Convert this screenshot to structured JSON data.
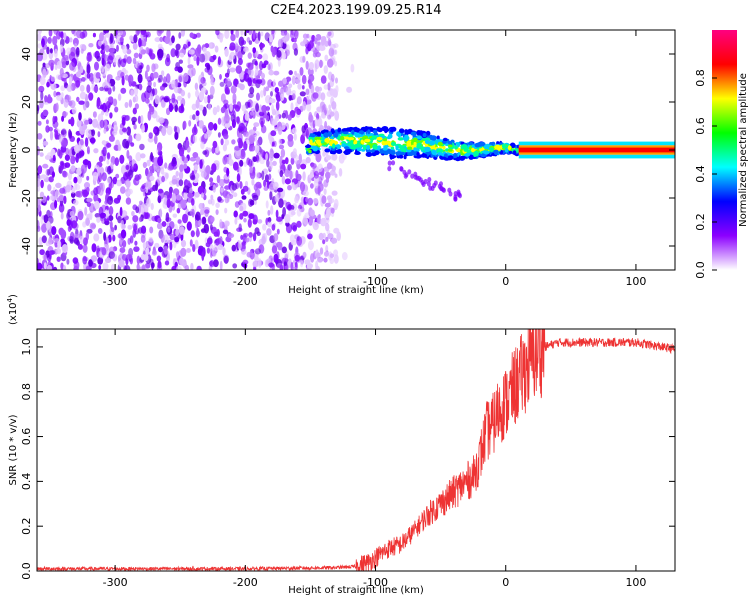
{
  "title": "C2E4.2023.199.09.25.R14",
  "chart_data": [
    {
      "type": "heatmap",
      "name": "spectrogram",
      "xlabel": "Height of straight line (km)",
      "ylabel": "Frequency (Hz)",
      "xlim": [
        -360,
        130
      ],
      "ylim": [
        -50,
        50
      ],
      "xticks": [
        -300,
        -200,
        -100,
        0,
        100
      ],
      "yticks": [
        -40,
        -20,
        0,
        20,
        40
      ],
      "noise_region": {
        "x_range": [
          -360,
          -130
        ],
        "y_range": [
          -50,
          50
        ]
      },
      "signal_band": [
        {
          "x": -150,
          "center": 3,
          "half_width": 4
        },
        {
          "x": -120,
          "center": 4,
          "half_width": 5
        },
        {
          "x": -90,
          "center": 3,
          "half_width": 6
        },
        {
          "x": -60,
          "center": 2,
          "half_width": 5
        },
        {
          "x": -40,
          "center": 0,
          "half_width": 4
        },
        {
          "x": -20,
          "center": 0,
          "half_width": 3
        },
        {
          "x": 0,
          "center": 1,
          "half_width": 2
        },
        {
          "x": 10,
          "center": 0,
          "half_width": 1.5
        },
        {
          "x": 130,
          "center": 0,
          "half_width": 1.5
        }
      ],
      "colorbar": {
        "label": "Normalized spectral amplitude",
        "range": [
          0,
          1
        ],
        "ticks": [
          0.0,
          0.2,
          0.4,
          0.6,
          0.8
        ],
        "tick_labels": [
          "0.0",
          "0.2",
          "0.4",
          "0.6",
          "0.8"
        ],
        "colors": [
          "#ffffff",
          "#8c00ff",
          "#0000ff",
          "#00ffff",
          "#00ff00",
          "#ffff00",
          "#ff0000",
          "#ff0080"
        ]
      }
    },
    {
      "type": "line",
      "name": "snr",
      "xlabel": "Height of straight line (km)",
      "ylabel": "SNR (10 * v/v)",
      "y_multiplier": "(x10",
      "y_multiplier_exp": "4",
      "y_multiplier_close": ")",
      "xlim": [
        -360,
        130
      ],
      "ylim": [
        0.0,
        1.08
      ],
      "xticks": [
        -300,
        -200,
        -100,
        0,
        100
      ],
      "yticks": [
        0.0,
        0.2,
        0.4,
        0.6,
        0.8,
        1.0
      ],
      "ytick_labels": [
        "0.0",
        "0.2",
        "0.4",
        "0.6",
        "0.8",
        "1.0"
      ],
      "series": [
        {
          "name": "SNR",
          "color": "#ee3333",
          "x": [
            -360,
            -300,
            -200,
            -130,
            -115,
            -105,
            -100,
            -90,
            -80,
            -70,
            -60,
            -50,
            -40,
            -30,
            -25,
            -20,
            -15,
            -10,
            -5,
            0,
            5,
            10,
            15,
            20,
            25,
            30,
            40,
            60,
            80,
            95,
            100,
            110,
            120,
            130
          ],
          "y": [
            0.01,
            0.01,
            0.01,
            0.015,
            0.02,
            0.04,
            0.06,
            0.1,
            0.12,
            0.18,
            0.25,
            0.3,
            0.35,
            0.4,
            0.42,
            0.5,
            0.62,
            0.65,
            0.72,
            0.75,
            0.8,
            0.85,
            0.9,
            0.95,
            0.98,
            1.0,
            1.02,
            1.02,
            1.02,
            1.02,
            1.02,
            1.01,
            1.0,
            0.99
          ]
        }
      ]
    }
  ]
}
